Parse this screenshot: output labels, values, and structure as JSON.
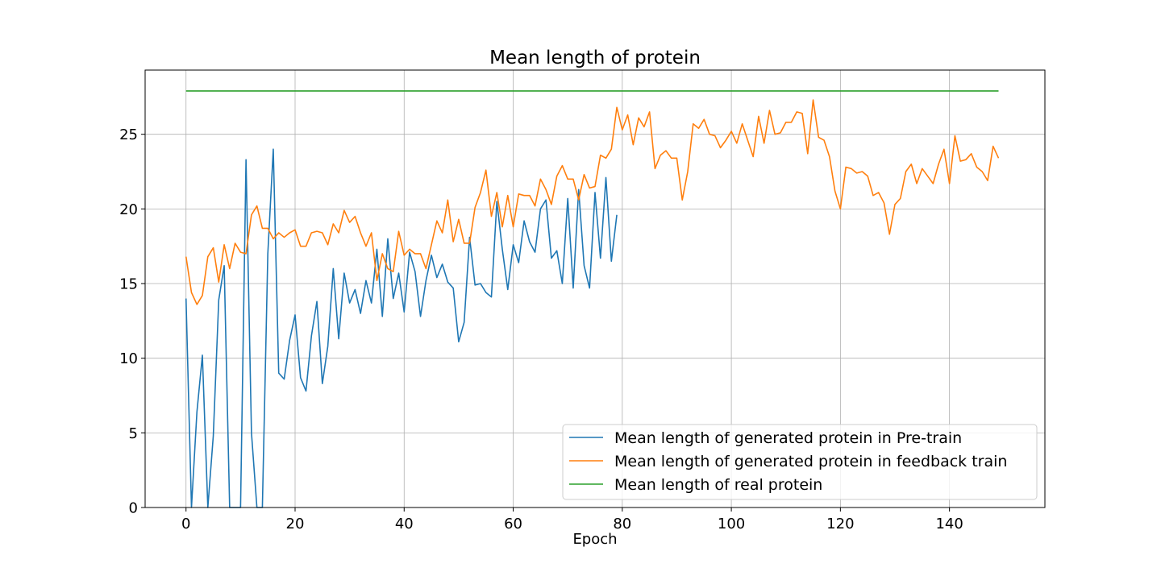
{
  "chart_data": {
    "type": "line",
    "title": "Mean length of protein",
    "xlabel": "Epoch",
    "ylabel": "",
    "xlim": [
      -7.5,
      157.5
    ],
    "ylim": [
      0,
      29.3
    ],
    "xticks": [
      0,
      20,
      40,
      60,
      80,
      100,
      120,
      140
    ],
    "yticks": [
      0,
      5,
      10,
      15,
      20,
      25
    ],
    "grid": true,
    "legend_position": "lower-right",
    "series": [
      {
        "name": "Mean length of generated protein in Pre-train",
        "color": "#1f77b4",
        "x": [
          0,
          1,
          2,
          3,
          4,
          5,
          6,
          7,
          8,
          9,
          10,
          11,
          12,
          13,
          14,
          15,
          16,
          17,
          18,
          19,
          20,
          21,
          22,
          23,
          24,
          25,
          26,
          27,
          28,
          29,
          30,
          31,
          32,
          33,
          34,
          35,
          36,
          37,
          38,
          39,
          40,
          41,
          42,
          43,
          44,
          45,
          46,
          47,
          48,
          49,
          50,
          51,
          52,
          53,
          54,
          55,
          56,
          57,
          58,
          59,
          60,
          61,
          62,
          63,
          64,
          65,
          66,
          67,
          68,
          69,
          70,
          71,
          72,
          73,
          74,
          75,
          76,
          77,
          78,
          79
        ],
        "y": [
          14.0,
          0.0,
          6.4,
          10.2,
          0.0,
          4.8,
          13.9,
          16.2,
          0.0,
          0.0,
          0.0,
          23.3,
          5.0,
          0.0,
          0.0,
          17.0,
          24.0,
          9.0,
          8.6,
          11.2,
          12.9,
          8.7,
          7.8,
          11.5,
          13.8,
          8.3,
          10.8,
          16.0,
          11.3,
          15.7,
          13.7,
          14.6,
          13.0,
          15.2,
          13.7,
          17.3,
          12.8,
          18.0,
          14.0,
          15.7,
          13.1,
          17.1,
          15.8,
          12.8,
          15.2,
          16.9,
          15.4,
          16.3,
          15.1,
          14.7,
          11.1,
          12.4,
          18.1,
          14.9,
          15.0,
          14.4,
          14.1,
          20.5,
          17.3,
          14.6,
          17.6,
          16.4,
          19.2,
          17.8,
          17.1,
          20.0,
          20.6,
          16.7,
          17.2,
          15.0,
          20.7,
          14.7,
          21.3,
          16.2,
          14.7,
          21.1,
          16.7,
          22.1,
          16.5,
          19.6
        ]
      },
      {
        "name": "Mean length of generated protein in feedback train",
        "color": "#ff7f0e",
        "x": [
          0,
          1,
          2,
          3,
          4,
          5,
          6,
          7,
          8,
          9,
          10,
          11,
          12,
          13,
          14,
          15,
          16,
          17,
          18,
          19,
          20,
          21,
          22,
          23,
          24,
          25,
          26,
          27,
          28,
          29,
          30,
          31,
          32,
          33,
          34,
          35,
          36,
          37,
          38,
          39,
          40,
          41,
          42,
          43,
          44,
          45,
          46,
          47,
          48,
          49,
          50,
          51,
          52,
          53,
          54,
          55,
          56,
          57,
          58,
          59,
          60,
          61,
          62,
          63,
          64,
          65,
          66,
          67,
          68,
          69,
          70,
          71,
          72,
          73,
          74,
          75,
          76,
          77,
          78,
          79,
          80,
          81,
          82,
          83,
          84,
          85,
          86,
          87,
          88,
          89,
          90,
          91,
          92,
          93,
          94,
          95,
          96,
          97,
          98,
          99,
          100,
          101,
          102,
          103,
          104,
          105,
          106,
          107,
          108,
          109,
          110,
          111,
          112,
          113,
          114,
          115,
          116,
          117,
          118,
          119,
          120,
          121,
          122,
          123,
          124,
          125,
          126,
          127,
          128,
          129,
          130,
          131,
          132,
          133,
          134,
          135,
          136,
          137,
          138,
          139,
          140,
          141,
          142,
          143,
          144,
          145,
          146,
          147,
          148,
          149
        ],
        "y": [
          16.8,
          14.4,
          13.6,
          14.2,
          16.8,
          17.4,
          15.1,
          17.6,
          16.0,
          17.7,
          17.1,
          17.0,
          19.6,
          20.2,
          18.7,
          18.7,
          18.0,
          18.4,
          18.1,
          18.4,
          18.6,
          17.5,
          17.5,
          18.4,
          18.5,
          18.4,
          17.6,
          19.0,
          18.4,
          19.9,
          19.1,
          19.5,
          18.4,
          17.5,
          18.4,
          15.2,
          17.0,
          16.0,
          15.8,
          18.5,
          16.9,
          17.3,
          17.0,
          17.0,
          16.0,
          17.6,
          19.2,
          18.4,
          20.6,
          17.8,
          19.3,
          17.7,
          17.7,
          20.1,
          21.1,
          22.6,
          19.5,
          21.1,
          18.8,
          20.9,
          18.8,
          21.0,
          20.9,
          20.9,
          20.2,
          22.0,
          21.3,
          20.3,
          22.2,
          22.9,
          22.0,
          22.0,
          20.6,
          22.3,
          21.4,
          21.5,
          23.6,
          23.4,
          24.0,
          26.8,
          25.3,
          26.3,
          24.3,
          26.1,
          25.5,
          26.5,
          22.7,
          23.6,
          23.9,
          23.4,
          23.4,
          20.6,
          22.5,
          25.7,
          25.4,
          26.0,
          25.0,
          24.9,
          24.1,
          24.6,
          25.2,
          24.4,
          25.7,
          24.6,
          23.5,
          26.2,
          24.4,
          26.6,
          25.0,
          25.1,
          25.8,
          25.8,
          26.5,
          26.4,
          23.7,
          27.3,
          24.8,
          24.6,
          23.5,
          21.2,
          20.0,
          22.8,
          22.7,
          22.4,
          22.5,
          22.2,
          20.9,
          21.1,
          20.4,
          18.3,
          20.3,
          20.7,
          22.5,
          23.0,
          21.7,
          22.7,
          22.2,
          21.7,
          23.0,
          24.0,
          21.7,
          24.9,
          23.2,
          23.3,
          23.7,
          22.8,
          22.5,
          21.9,
          24.2,
          23.4
        ]
      },
      {
        "name": "Mean length of real protein",
        "color": "#2ca02c",
        "x": [
          0,
          149
        ],
        "y": [
          27.9,
          27.9
        ]
      }
    ]
  }
}
